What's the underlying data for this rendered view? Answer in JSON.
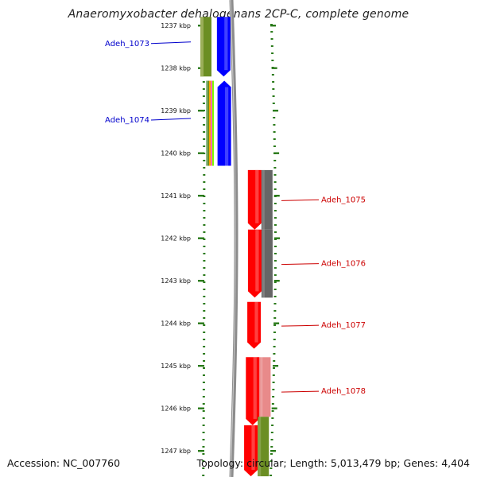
{
  "title": "Anaeromyxobacter dehalogenans 2CP-C, complete genome",
  "footer": {
    "accession": "Accession: NC_007760",
    "summary": "Topology: circular; Length: 5,013,479 bp; Genes: 4,404"
  },
  "colors": {
    "forward_label": "#0000cc",
    "reverse_label": "#cc0000",
    "tick": "#2a7a1a",
    "backbone": "#8c8c8c"
  },
  "scale": {
    "unit": "kbp",
    "ticks": [
      1237,
      1238,
      1239,
      1240,
      1241,
      1242,
      1243,
      1244,
      1245,
      1246,
      1247
    ],
    "tick_labels": [
      "1237 kbp",
      "1238 kbp",
      "1239 kbp",
      "1240 kbp",
      "1241 kbp",
      "1242 kbp",
      "1243 kbp",
      "1244 kbp",
      "1245 kbp",
      "1246 kbp",
      "1247 kbp"
    ]
  },
  "genes": [
    {
      "name": "Adeh_1073",
      "strand": "forward",
      "start_kbp": 1236.8,
      "end_kbp": 1238.2
    },
    {
      "name": "Adeh_1074",
      "strand": "forward",
      "start_kbp": 1238.3,
      "end_kbp": 1240.3
    },
    {
      "name": "Adeh_1075",
      "strand": "reverse",
      "start_kbp": 1240.4,
      "end_kbp": 1241.8
    },
    {
      "name": "Adeh_1076",
      "strand": "reverse",
      "start_kbp": 1241.8,
      "end_kbp": 1243.4
    },
    {
      "name": "Adeh_1077",
      "strand": "reverse",
      "start_kbp": 1243.5,
      "end_kbp": 1244.6
    },
    {
      "name": "Adeh_1078",
      "strand": "reverse",
      "start_kbp": 1244.8,
      "end_kbp": 1246.4
    },
    {
      "name": "",
      "strand": "reverse",
      "start_kbp": 1246.4,
      "end_kbp": 1247.6
    }
  ],
  "feature_tracks": {
    "forward_cog": [
      {
        "start_kbp": 1236.8,
        "end_kbp": 1238.2,
        "color": "#6b8e23"
      },
      {
        "start_kbp": 1238.3,
        "end_kbp": 1240.3,
        "color": "multi"
      }
    ],
    "reverse_cog": [
      {
        "start_kbp": 1240.4,
        "end_kbp": 1241.8,
        "color": "#666666"
      },
      {
        "start_kbp": 1241.8,
        "end_kbp": 1243.4,
        "color": "#666666"
      },
      {
        "start_kbp": 1244.8,
        "end_kbp": 1246.2,
        "color": "#e88a8a"
      },
      {
        "start_kbp": 1246.2,
        "end_kbp": 1247.6,
        "color": "#6b8e23"
      }
    ]
  }
}
